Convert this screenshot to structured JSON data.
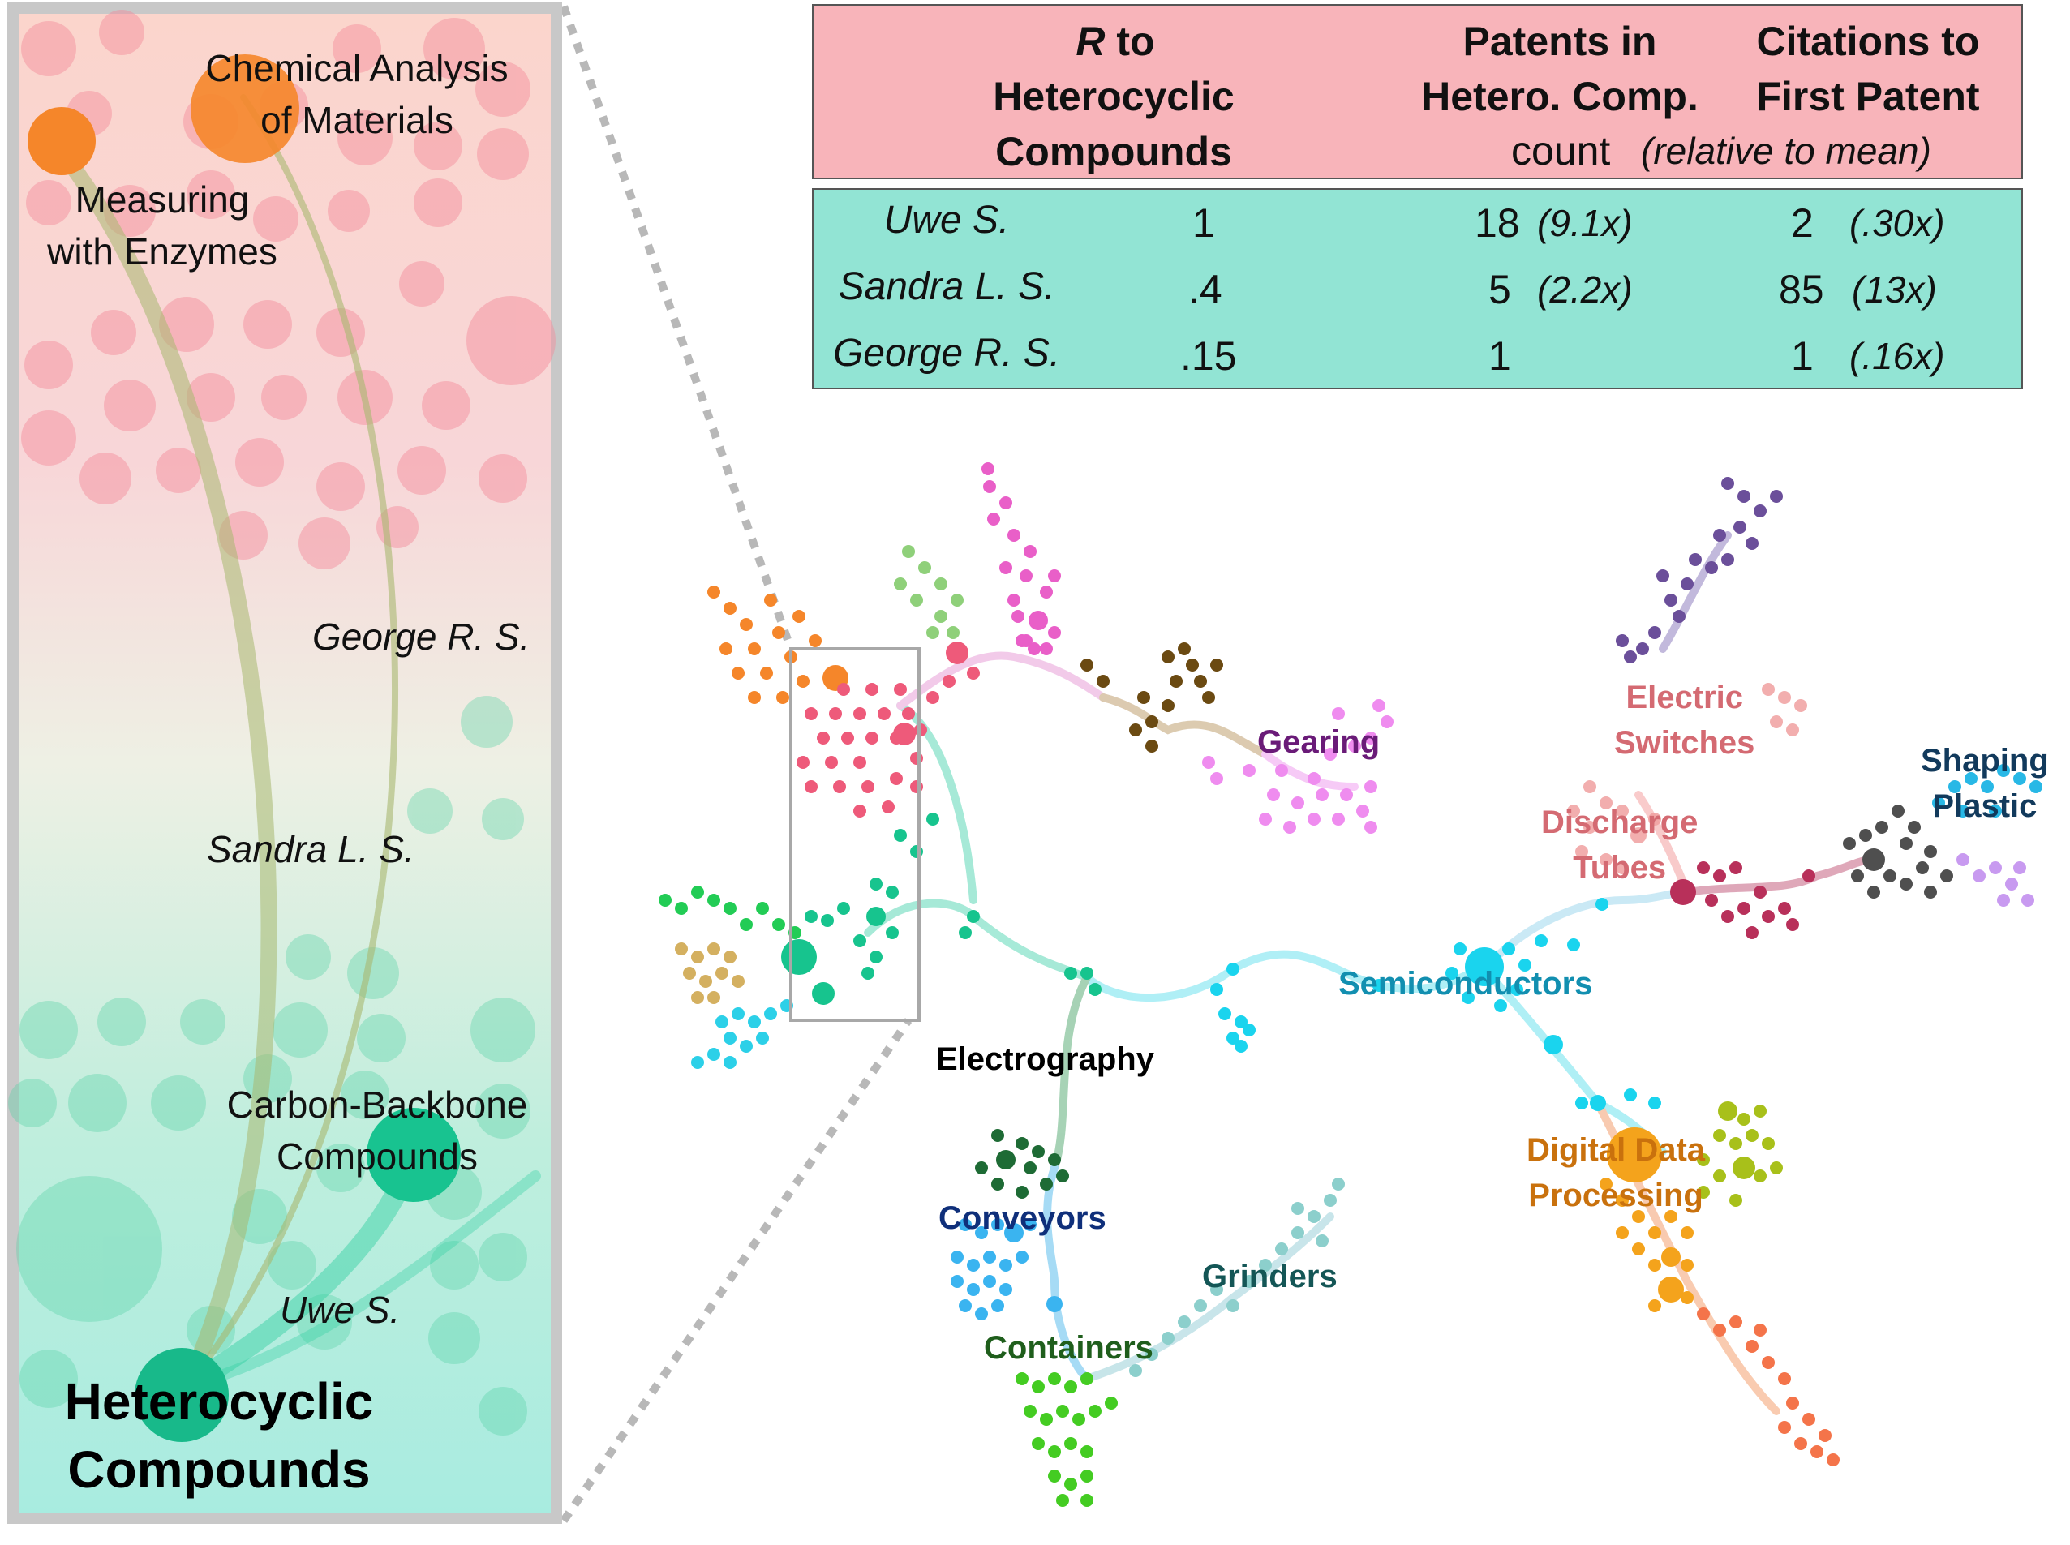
{
  "table": {
    "headers": {
      "r_line1": "R",
      "r_line1_rest": " to",
      "r_line2": "Heterocyclic",
      "r_line3": "Compounds",
      "patents_line1": "Patents in",
      "patents_line2": "Hetero. Comp.",
      "citations_line1": "Citations to",
      "citations_line2": "First Patent",
      "count": "count",
      "relative": "(relative to mean)"
    },
    "rows": [
      {
        "name": "Uwe S.",
        "r": "1",
        "patents": "18",
        "patents_rel": "(9.1x)",
        "citations": "2",
        "citations_rel": "(.30x)"
      },
      {
        "name": "Sandra L. S.",
        "r": ".4",
        "patents": "5",
        "patents_rel": "(2.2x)",
        "citations": "85",
        "citations_rel": "(13x)"
      },
      {
        "name": "George R. S.",
        "r": ".15",
        "patents": "1",
        "patents_rel": "",
        "citations": "1",
        "citations_rel": "(.16x)"
      }
    ]
  },
  "inset": {
    "chem_analysis": "Chemical Analysis of Materials",
    "chem_analysis_l1": "Chemical Analysis",
    "chem_analysis_l2": "of Materials",
    "enzymes_l1": "Measuring",
    "enzymes_l2": "with Enzymes",
    "george": "George R. S.",
    "sandra": "Sandra L. S.",
    "carbon_l1": "Carbon-Backbone",
    "carbon_l2": "Compounds",
    "uwe": "Uwe S.",
    "hetero_l1": "Heterocyclic",
    "hetero_l2": "Compounds"
  },
  "network_labels": {
    "gearing": "Gearing",
    "electric_l1": "Electric",
    "electric_l2": "Switches",
    "discharge_l1": "Discharge",
    "discharge_l2": "Tubes",
    "shaping_l1": "Shaping",
    "shaping_l2": "Plastic",
    "semiconductors": "Semiconductors",
    "electrography": "Electrography",
    "conveyors": "Conveyors",
    "grinders": "Grinders",
    "containers": "Containers",
    "digital_l1": "Digital Data",
    "digital_l2": "Processing"
  },
  "colors": {
    "header_bg": "#f8b4ba",
    "body_bg": "#92e4d4",
    "hetero": "#1cbf8f",
    "chem": "#f5862a",
    "pink": "#ee5a7a",
    "gearing": "#6a1b78",
    "electric": "#d46a72",
    "shaping": "#123a5c",
    "semiconductors": "#128fb0",
    "conveyors": "#0f2f7a",
    "grinders": "#145656",
    "containers": "#1f5e1c",
    "digital": "#c9710d"
  }
}
